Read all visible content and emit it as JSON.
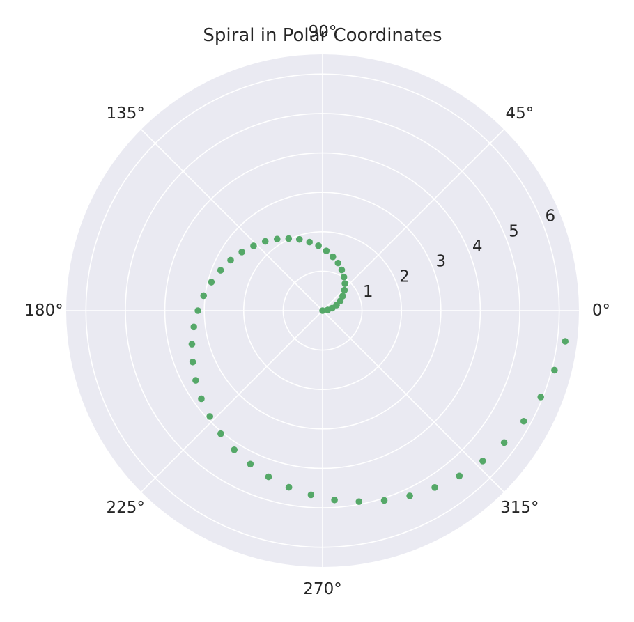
{
  "chart_data": {
    "type": "scatter",
    "projection": "polar",
    "title": "Spiral in Polar Coordinates",
    "angle_ticks": [
      {
        "deg": 0,
        "label": "0°"
      },
      {
        "deg": 45,
        "label": "45°"
      },
      {
        "deg": 90,
        "label": "90°"
      },
      {
        "deg": 135,
        "label": "135°"
      },
      {
        "deg": 180,
        "label": "180°"
      },
      {
        "deg": 225,
        "label": "225°"
      },
      {
        "deg": 270,
        "label": "270°"
      },
      {
        "deg": 315,
        "label": "315°"
      }
    ],
    "r_ticks": [
      {
        "value": 1,
        "label": "1"
      },
      {
        "value": 2,
        "label": "2"
      },
      {
        "value": 3,
        "label": "3"
      },
      {
        "value": 4,
        "label": "4"
      },
      {
        "value": 5,
        "label": "5"
      },
      {
        "value": 6,
        "label": "6"
      }
    ],
    "rlim": [
      0,
      6.5
    ],
    "grid": true,
    "colors": {
      "background": "#eaeaf2",
      "grid": "#ffffff",
      "points": "#55a868",
      "text": "#262626"
    },
    "series": [
      {
        "theta_deg": [
          0,
          7.2,
          14.4,
          21.6,
          28.8,
          36,
          43.2,
          50.4,
          57.6,
          64.8,
          72,
          79.2,
          86.4,
          93.6,
          100.8,
          108,
          115.2,
          122.4,
          129.6,
          136.8,
          144,
          151.2,
          158.4,
          165.6,
          172.8,
          180,
          187.2,
          194.4,
          201.6,
          208.8,
          216,
          223.2,
          230.4,
          237.6,
          244.8,
          252,
          259.2,
          266.4,
          273.6,
          280.8,
          288,
          295.2,
          302.4,
          309.6,
          316.8,
          324,
          331.2,
          338.4,
          345.6,
          352.8
        ],
        "r": [
          0.0,
          0.13,
          0.25,
          0.38,
          0.51,
          0.63,
          0.76,
          0.89,
          1.01,
          1.14,
          1.27,
          1.39,
          1.52,
          1.65,
          1.77,
          1.9,
          2.02,
          2.15,
          2.28,
          2.4,
          2.53,
          2.66,
          2.78,
          2.91,
          3.04,
          3.16,
          3.29,
          3.42,
          3.54,
          3.67,
          3.8,
          3.92,
          4.05,
          4.18,
          4.3,
          4.43,
          4.56,
          4.68,
          4.81,
          4.93,
          5.06,
          5.19,
          5.31,
          5.44,
          5.57,
          5.69,
          5.82,
          5.95,
          6.07,
          6.2
        ]
      }
    ]
  }
}
